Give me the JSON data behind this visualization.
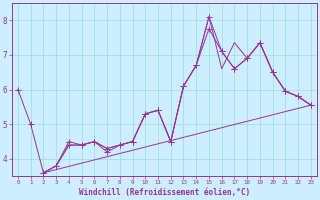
{
  "xlabel": "Windchill (Refroidissement éolien,°C)",
  "background_color": "#cceeff",
  "grid_color": "#99dddd",
  "line_color": "#993399",
  "xlim": [
    -0.5,
    23.5
  ],
  "ylim": [
    3.5,
    8.5
  ],
  "yticks": [
    4,
    5,
    6,
    7,
    8
  ],
  "xticks": [
    0,
    1,
    2,
    3,
    4,
    5,
    6,
    7,
    8,
    9,
    10,
    11,
    12,
    13,
    14,
    15,
    16,
    17,
    18,
    19,
    20,
    21,
    22,
    23
  ],
  "line1_x": [
    0,
    1,
    2,
    3,
    4,
    5,
    6,
    7,
    8,
    9,
    10,
    11,
    12,
    13,
    14,
    15,
    16,
    17,
    18,
    19,
    20,
    21,
    22,
    23
  ],
  "line1_y": [
    6.0,
    5.0,
    3.6,
    3.8,
    4.5,
    4.4,
    4.5,
    4.2,
    4.4,
    4.5,
    5.3,
    5.4,
    4.5,
    6.1,
    6.7,
    7.75,
    7.1,
    6.6,
    6.9,
    7.35,
    6.5,
    5.95,
    5.8,
    5.55
  ],
  "line2_x": [
    2,
    3,
    4,
    5,
    6,
    7,
    8,
    9,
    10,
    11,
    12,
    13,
    14,
    15,
    16,
    17,
    18,
    19,
    20,
    21,
    22,
    23
  ],
  "line2_y": [
    3.6,
    3.8,
    4.4,
    4.4,
    4.5,
    4.3,
    4.4,
    4.5,
    5.3,
    5.4,
    4.5,
    6.1,
    6.7,
    8.1,
    7.1,
    6.6,
    6.9,
    7.35,
    6.5,
    5.95,
    5.8,
    5.55
  ],
  "line3_x": [
    2,
    23
  ],
  "line3_y": [
    3.6,
    5.55
  ],
  "line4_x": [
    2,
    3,
    4,
    5,
    6,
    7,
    8,
    9,
    10,
    11,
    12,
    13,
    14,
    15,
    16,
    17,
    18,
    19,
    20,
    21,
    22,
    23
  ],
  "line4_y": [
    3.6,
    3.8,
    4.4,
    4.4,
    4.5,
    4.3,
    4.4,
    4.5,
    5.3,
    5.4,
    4.5,
    6.1,
    6.7,
    8.1,
    6.6,
    7.35,
    6.9,
    7.35,
    6.5,
    5.95,
    5.8,
    5.55
  ]
}
